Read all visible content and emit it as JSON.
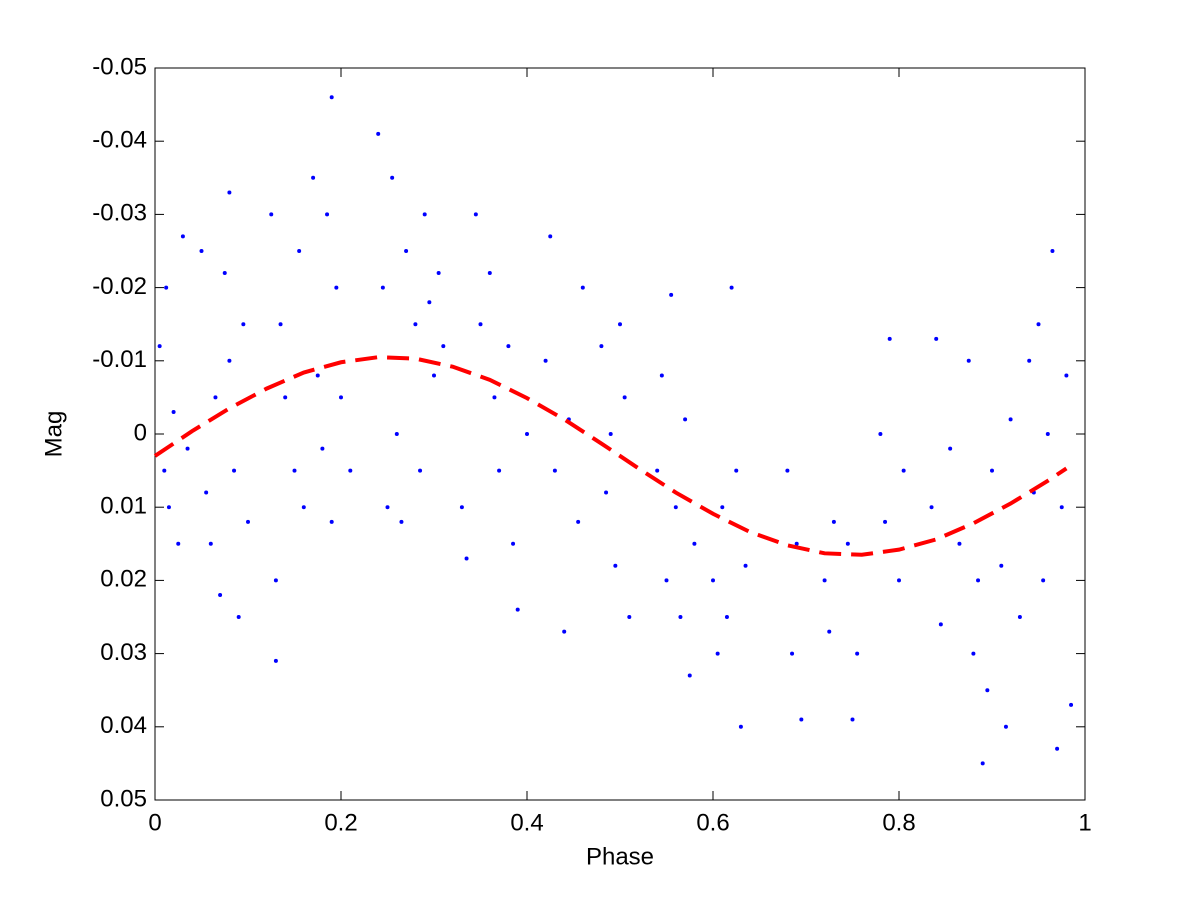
{
  "chart_data": {
    "type": "scatter",
    "xlabel": "Phase",
    "ylabel": "Mag",
    "xlim": [
      0,
      1
    ],
    "xticks": [
      0,
      0.2,
      0.4,
      0.6,
      0.8,
      1
    ],
    "ylim": [
      -0.05,
      0.05
    ],
    "yticks": [
      -0.05,
      -0.04,
      -0.03,
      -0.02,
      -0.01,
      0,
      0.01,
      0.02,
      0.03,
      0.04,
      0.05
    ],
    "yreverse": true,
    "grid": false,
    "series": [
      {
        "type": "scatter",
        "color": "#0000ff",
        "x": [
          0.005,
          0.01,
          0.012,
          0.015,
          0.02,
          0.025,
          0.03,
          0.035,
          0.05,
          0.055,
          0.06,
          0.065,
          0.07,
          0.075,
          0.08,
          0.085,
          0.09,
          0.095,
          0.1,
          0.08,
          0.125,
          0.13,
          0.13,
          0.135,
          0.14,
          0.15,
          0.155,
          0.16,
          0.17,
          0.175,
          0.18,
          0.185,
          0.19,
          0.19,
          0.195,
          0.2,
          0.21,
          0.24,
          0.245,
          0.25,
          0.255,
          0.26,
          0.265,
          0.27,
          0.28,
          0.285,
          0.29,
          0.295,
          0.3,
          0.305,
          0.31,
          0.33,
          0.335,
          0.345,
          0.35,
          0.36,
          0.365,
          0.37,
          0.38,
          0.385,
          0.39,
          0.4,
          0.42,
          0.425,
          0.43,
          0.44,
          0.445,
          0.455,
          0.46,
          0.48,
          0.485,
          0.49,
          0.495,
          0.5,
          0.505,
          0.51,
          0.54,
          0.545,
          0.55,
          0.555,
          0.56,
          0.565,
          0.57,
          0.575,
          0.58,
          0.6,
          0.605,
          0.61,
          0.615,
          0.62,
          0.625,
          0.63,
          0.635,
          0.68,
          0.685,
          0.69,
          0.695,
          0.72,
          0.725,
          0.73,
          0.745,
          0.75,
          0.755,
          0.78,
          0.785,
          0.79,
          0.8,
          0.805,
          0.835,
          0.84,
          0.845,
          0.855,
          0.865,
          0.875,
          0.88,
          0.885,
          0.89,
          0.895,
          0.9,
          0.91,
          0.915,
          0.92,
          0.93,
          0.94,
          0.945,
          0.95,
          0.955,
          0.96,
          0.965,
          0.97,
          0.975,
          0.98,
          0.985
        ],
        "values": [
          -0.012,
          0.005,
          -0.02,
          0.01,
          -0.003,
          0.015,
          -0.027,
          0.002,
          -0.025,
          0.008,
          0.015,
          -0.005,
          0.022,
          -0.022,
          -0.01,
          0.005,
          0.025,
          -0.015,
          0.012,
          -0.033,
          -0.03,
          0.02,
          0.031,
          -0.015,
          -0.005,
          0.005,
          -0.025,
          0.01,
          -0.035,
          -0.008,
          0.002,
          -0.03,
          -0.046,
          0.012,
          -0.02,
          -0.005,
          0.005,
          -0.041,
          -0.02,
          0.01,
          -0.035,
          0,
          0.012,
          -0.025,
          -0.015,
          0.005,
          -0.03,
          -0.018,
          -0.008,
          -0.022,
          -0.012,
          0.01,
          0.017,
          -0.03,
          -0.015,
          -0.022,
          -0.005,
          0.005,
          -0.012,
          0.015,
          0.024,
          0,
          -0.01,
          -0.027,
          0.005,
          0.027,
          -0.002,
          0.012,
          -0.02,
          -0.012,
          0.008,
          0,
          0.018,
          -0.015,
          -0.005,
          0.025,
          0.005,
          -0.008,
          0.02,
          -0.019,
          0.01,
          0.025,
          -0.002,
          0.033,
          0.015,
          0.02,
          0.03,
          0.01,
          0.025,
          -0.02,
          0.005,
          0.04,
          0.018,
          0.005,
          0.03,
          0.015,
          0.039,
          0.02,
          0.027,
          0.012,
          0.015,
          0.039,
          0.03,
          0,
          0.012,
          -0.013,
          0.02,
          0.005,
          0.01,
          -0.013,
          0.026,
          0.002,
          0.015,
          -0.01,
          0.03,
          0.02,
          0.045,
          0.035,
          0.005,
          0.018,
          0.04,
          -0.002,
          0.025,
          -0.01,
          0.008,
          -0.015,
          0.02,
          0,
          -0.025,
          0.043,
          0.01,
          -0.008,
          0.037
        ]
      },
      {
        "type": "line",
        "color": "#ff0000",
        "x": [
          0,
          0.04,
          0.08,
          0.12,
          0.16,
          0.2,
          0.24,
          0.28,
          0.32,
          0.36,
          0.4,
          0.44,
          0.48,
          0.52,
          0.56,
          0.6,
          0.64,
          0.68,
          0.72,
          0.76,
          0.8,
          0.84,
          0.88,
          0.92,
          0.96,
          0.98
        ],
        "values": [
          0.003,
          -0.0004,
          -0.0035,
          -0.0062,
          -0.0084,
          -0.0098,
          -0.0105,
          -0.0103,
          -0.0092,
          -0.0074,
          -0.0049,
          -0.002,
          0.0013,
          0.0047,
          0.008,
          0.0109,
          0.0134,
          0.0152,
          0.0163,
          0.0165,
          0.0158,
          0.0144,
          0.0122,
          0.0095,
          0.0064,
          0.0047
        ]
      }
    ]
  }
}
